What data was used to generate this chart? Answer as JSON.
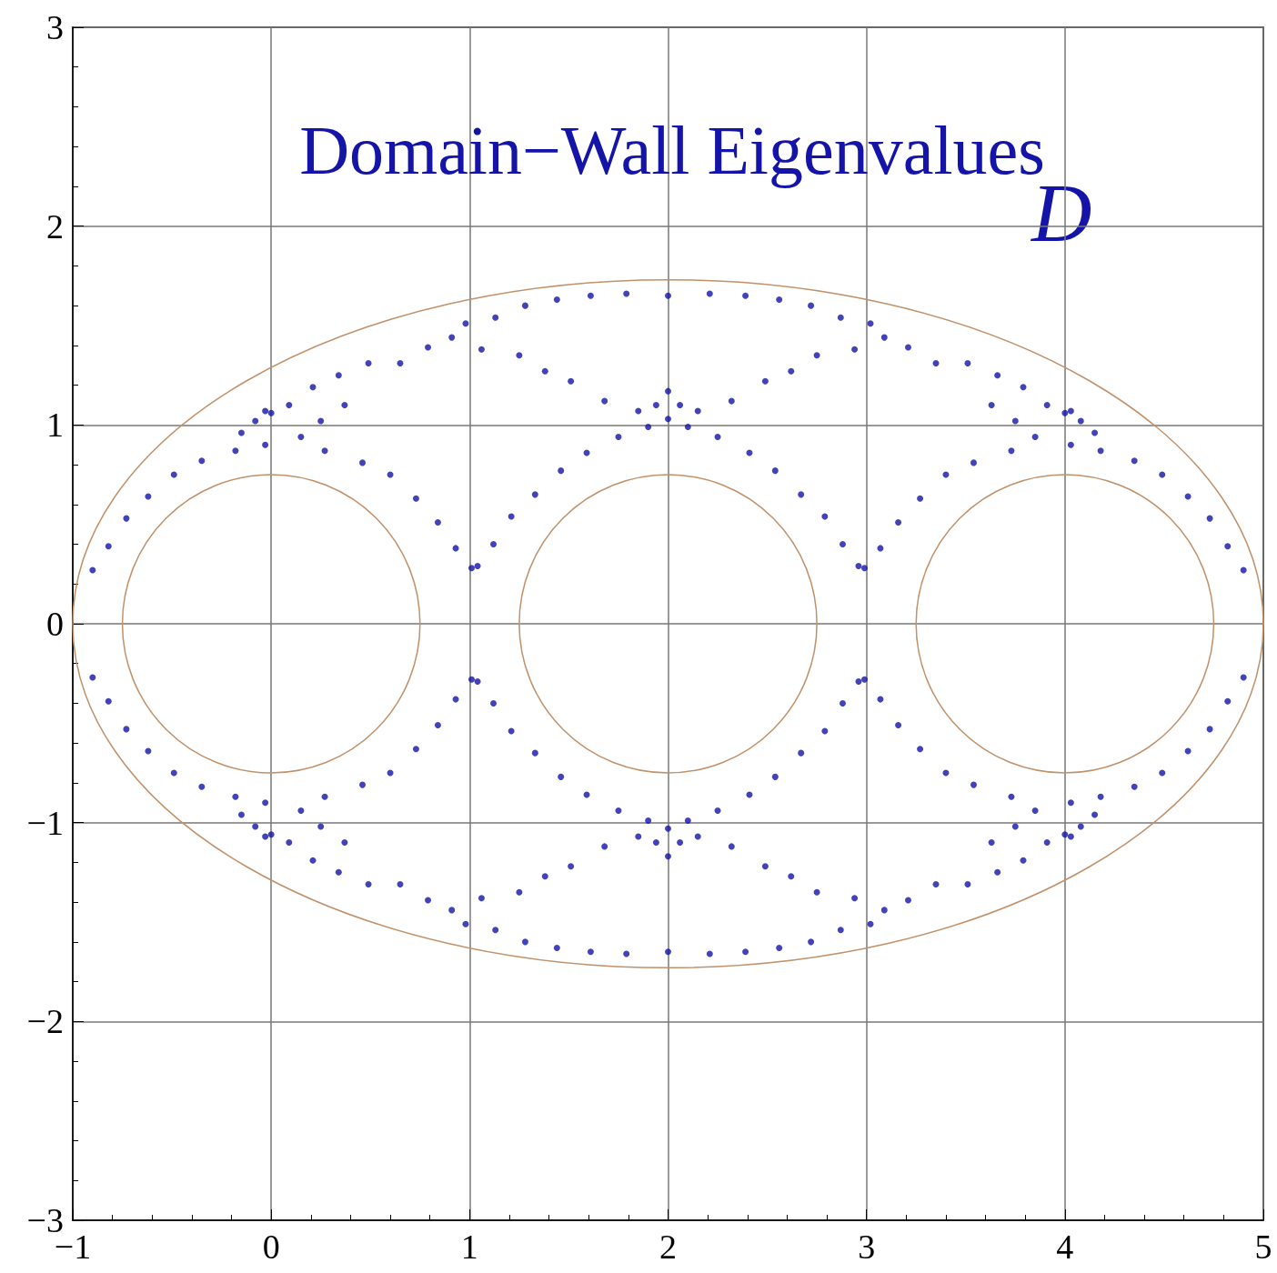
{
  "chart_data": {
    "type": "scatter",
    "title": "Domain−Wall Eigenvalues",
    "annotations": [
      "D"
    ],
    "xlim": [
      -1,
      5
    ],
    "xticks": [
      -1,
      0,
      1,
      2,
      3,
      4,
      5
    ],
    "ylim": [
      -3,
      3
    ],
    "yticks": [
      -3,
      -2,
      -1,
      0,
      1,
      2,
      3
    ],
    "grid": true,
    "series": [
      {
        "marker": "circle",
        "color": "#1414a8",
        "x": [
          -0.9,
          -0.82,
          -0.73,
          -0.62,
          -0.49,
          -0.35,
          -0.18,
          -0.15,
          -0.08,
          -0.03,
          0.0,
          -0.03,
          0.27,
          0.46,
          0.6,
          0.73,
          0.84,
          0.93,
          1.01,
          1.04,
          1.12,
          1.21,
          1.33,
          1.46,
          1.59,
          1.75,
          1.9,
          0.09,
          0.21,
          0.34,
          0.49,
          0.65,
          0.79,
          0.91,
          0.98,
          1.06,
          1.13,
          1.25,
          1.28,
          1.38,
          1.44,
          1.51,
          1.61,
          1.68,
          1.79,
          1.85,
          1.94,
          0.15,
          0.25,
          0.37,
          4.9,
          4.82,
          4.73,
          4.62,
          4.49,
          4.35,
          4.18,
          4.15,
          4.08,
          4.03,
          4.0,
          4.03,
          3.73,
          3.54,
          3.4,
          3.27,
          3.16,
          3.07,
          2.99,
          2.96,
          2.88,
          2.79,
          2.67,
          2.54,
          2.41,
          2.25,
          2.1,
          3.91,
          3.79,
          3.66,
          3.51,
          3.35,
          3.21,
          3.09,
          3.02,
          2.94,
          2.87,
          2.75,
          2.72,
          2.62,
          2.56,
          2.49,
          2.39,
          2.32,
          2.21,
          2.15,
          2.06,
          3.85,
          3.75,
          3.63,
          -0.9,
          -0.82,
          -0.73,
          -0.62,
          -0.49,
          -0.35,
          -0.18,
          -0.15,
          -0.08,
          -0.03,
          0.0,
          -0.03,
          0.27,
          0.46,
          0.6,
          0.73,
          0.84,
          0.93,
          1.01,
          1.04,
          1.12,
          1.21,
          1.33,
          1.46,
          1.59,
          1.75,
          1.9,
          0.09,
          0.21,
          0.34,
          0.49,
          0.65,
          0.79,
          0.91,
          0.98,
          1.06,
          1.13,
          1.25,
          1.28,
          1.38,
          1.44,
          1.51,
          1.61,
          1.68,
          1.79,
          1.85,
          1.94,
          0.15,
          0.25,
          0.37,
          4.9,
          4.82,
          4.73,
          4.62,
          4.49,
          4.35,
          4.18,
          4.15,
          4.08,
          4.03,
          4.0,
          4.03,
          3.73,
          3.54,
          3.4,
          3.27,
          3.16,
          3.07,
          2.99,
          2.96,
          2.88,
          2.79,
          2.67,
          2.54,
          2.41,
          2.25,
          2.1,
          3.91,
          3.79,
          3.66,
          3.51,
          3.35,
          3.21,
          3.09,
          3.02,
          2.94,
          2.87,
          2.75,
          2.72,
          2.62,
          2.56,
          2.49,
          2.39,
          2.32,
          2.21,
          2.15,
          2.06,
          3.85,
          3.75,
          3.63,
          2.0,
          2.0,
          2.0,
          2.0,
          2.0,
          2.0
        ],
        "values": [
          0.27,
          0.39,
          0.53,
          0.64,
          0.75,
          0.82,
          0.87,
          0.96,
          1.02,
          1.07,
          1.06,
          0.9,
          0.87,
          0.81,
          0.75,
          0.63,
          0.51,
          0.38,
          0.28,
          0.29,
          0.4,
          0.54,
          0.65,
          0.77,
          0.86,
          0.94,
          0.99,
          1.1,
          1.19,
          1.25,
          1.31,
          1.31,
          1.39,
          1.44,
          1.51,
          1.38,
          1.54,
          1.35,
          1.6,
          1.27,
          1.63,
          1.22,
          1.65,
          1.12,
          1.66,
          1.07,
          1.1,
          0.94,
          1.02,
          1.1,
          0.27,
          0.39,
          0.53,
          0.64,
          0.75,
          0.82,
          0.87,
          0.96,
          1.02,
          1.07,
          1.06,
          0.9,
          0.87,
          0.81,
          0.75,
          0.63,
          0.51,
          0.38,
          0.28,
          0.29,
          0.4,
          0.54,
          0.65,
          0.77,
          0.86,
          0.94,
          0.99,
          1.1,
          1.19,
          1.25,
          1.31,
          1.31,
          1.39,
          1.44,
          1.51,
          1.38,
          1.54,
          1.35,
          1.6,
          1.27,
          1.63,
          1.22,
          1.65,
          1.12,
          1.66,
          1.07,
          1.1,
          0.94,
          1.02,
          1.1,
          -0.27,
          -0.39,
          -0.53,
          -0.64,
          -0.75,
          -0.82,
          -0.87,
          -0.96,
          -1.02,
          -1.07,
          -1.06,
          -0.9,
          -0.87,
          -0.81,
          -0.75,
          -0.63,
          -0.51,
          -0.38,
          -0.28,
          -0.29,
          -0.4,
          -0.54,
          -0.65,
          -0.77,
          -0.86,
          -0.94,
          -0.99,
          -1.1,
          -1.19,
          -1.25,
          -1.31,
          -1.31,
          -1.39,
          -1.44,
          -1.51,
          -1.38,
          -1.54,
          -1.35,
          -1.6,
          -1.27,
          -1.63,
          -1.22,
          -1.65,
          -1.12,
          -1.66,
          -1.07,
          -1.1,
          -0.94,
          -1.02,
          -1.1,
          -0.27,
          -0.39,
          -0.53,
          -0.64,
          -0.75,
          -0.82,
          -0.87,
          -0.96,
          -1.02,
          -1.07,
          -1.06,
          -0.9,
          -0.87,
          -0.81,
          -0.75,
          -0.63,
          -0.51,
          -0.38,
          -0.28,
          -0.29,
          -0.4,
          -0.54,
          -0.65,
          -0.77,
          -0.86,
          -0.94,
          -0.99,
          -1.1,
          -1.19,
          -1.25,
          -1.31,
          -1.31,
          -1.39,
          -1.44,
          -1.51,
          -1.38,
          -1.54,
          -1.35,
          -1.6,
          -1.27,
          -1.63,
          -1.22,
          -1.65,
          -1.12,
          -1.66,
          -1.07,
          -1.1,
          -0.94,
          -1.02,
          -1.1,
          1.65,
          1.03,
          1.17,
          -1.65,
          -1.03,
          -1.17
        ]
      }
    ]
  }
}
